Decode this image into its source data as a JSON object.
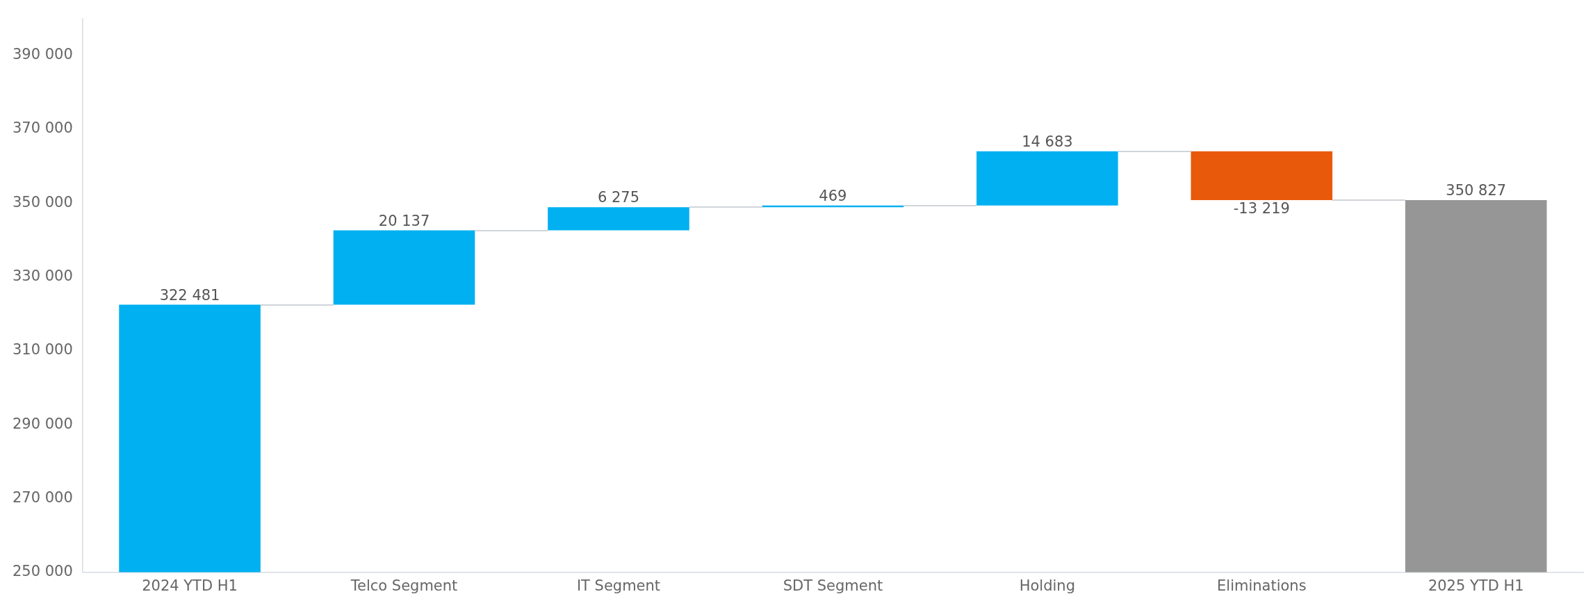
{
  "chart_data": {
    "type": "bar",
    "categories": [
      "2024 YTD H1",
      "Telco Segment",
      "IT Segment",
      "SDT Segment",
      "Holding",
      "Eliminations",
      "2025 YTD H1"
    ],
    "base": [
      250000,
      322481,
      342618,
      348893,
      349362,
      364045,
      250000
    ],
    "values": [
      72481,
      20137,
      6275,
      469,
      14683,
      -13219,
      100827
    ],
    "colors": [
      "#00b0f0",
      "#00b0f0",
      "#00b0f0",
      "#00b0f0",
      "#00b0f0",
      "#e8590c",
      "#969696"
    ],
    "value_labels": [
      "322 481",
      "20 137",
      "6 275",
      "469",
      "14 683",
      "-13 219",
      "350 827"
    ],
    "ylim": [
      250000,
      400000
    ],
    "yticks": [
      {
        "value": 250000,
        "label": "250 000"
      },
      {
        "value": 270000,
        "label": "270 000"
      },
      {
        "value": 290000,
        "label": "290 000"
      },
      {
        "value": 310000,
        "label": "310 000"
      },
      {
        "value": 330000,
        "label": "330 000"
      },
      {
        "value": 350000,
        "label": "350 000"
      },
      {
        "value": 370000,
        "label": "370 000"
      },
      {
        "value": 390000,
        "label": "390 000"
      }
    ],
    "grid": false,
    "legend": false
  }
}
